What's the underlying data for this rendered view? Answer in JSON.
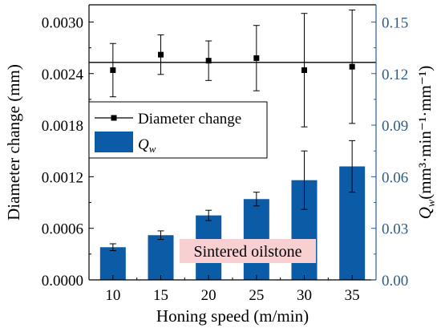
{
  "chart_data": {
    "type": "bar",
    "x": {
      "label": "Honing speed (m/min)",
      "categories": [
        "10",
        "15",
        "20",
        "25",
        "30",
        "35"
      ]
    },
    "y_left": {
      "label": "Diameter change (mm)",
      "range": [
        0,
        0.0032
      ],
      "ticks": [
        0.0,
        0.0006,
        0.0012,
        0.0018,
        0.0024,
        0.003
      ],
      "tick_labels": [
        "0.0000",
        "0.0006",
        "0.0012",
        "0.0018",
        "0.0024",
        "0.0030"
      ]
    },
    "y_right": {
      "label_main": "Q",
      "label_sub": "w",
      "label_units": "(mm³·min⁻¹·mm⁻¹)",
      "range": [
        0,
        0.16
      ],
      "ticks": [
        0.0,
        0.03,
        0.06,
        0.09,
        0.12,
        0.15
      ],
      "tick_labels": [
        "0.00",
        "0.03",
        "0.06",
        "0.09",
        "0.12",
        "0.15"
      ],
      "color": "#2a5d8f"
    },
    "series": [
      {
        "name": "Diameter change",
        "kind": "scatter-errorbar",
        "axis": "left",
        "values": [
          0.00244,
          0.00262,
          0.00255,
          0.00258,
          0.00244,
          0.00248
        ],
        "error": [
          0.00031,
          0.00023,
          0.00023,
          0.00038,
          0.00066,
          0.00066
        ],
        "color": "#000000"
      },
      {
        "name_main": "Q",
        "name_sub": "w",
        "kind": "bar-errorbar",
        "axis": "right",
        "values": [
          0.019,
          0.026,
          0.0375,
          0.047,
          0.058,
          0.066
        ],
        "error": [
          0.002,
          0.0025,
          0.003,
          0.004,
          0.017,
          0.015
        ],
        "color": "#0b5ba6"
      }
    ],
    "reference_line": {
      "axis": "left",
      "value": 0.00253
    },
    "legend": {
      "position": "center-left",
      "items": [
        "Diameter change",
        "Qw"
      ]
    },
    "annotation": {
      "text": "Sintered oilstone",
      "background": "#f8d0d2"
    },
    "grid": false
  }
}
